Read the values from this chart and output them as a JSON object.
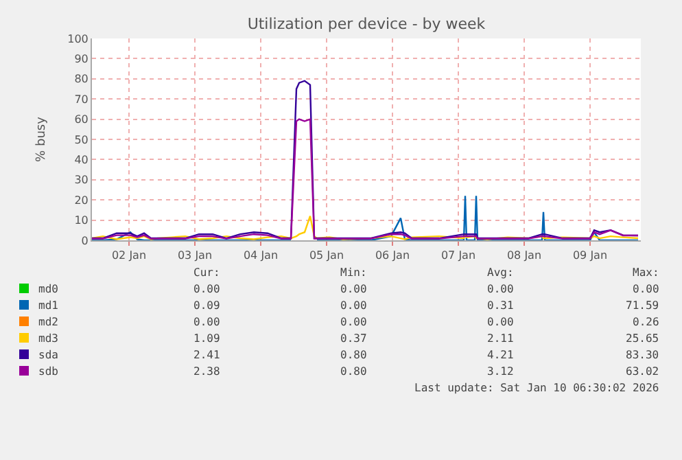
{
  "chart_data": {
    "type": "line",
    "title": "Utilization per device - by week",
    "ylabel": "% busy",
    "x": [
      "2026-01-01T22:30",
      "2026-01-02T02:30",
      "2026-01-02T07:30",
      "2026-01-02T12:30",
      "2026-01-02T15:00",
      "2026-01-02T17:30",
      "2026-01-02T20:00",
      "2026-01-02T22:30",
      "2026-01-03T03:30",
      "2026-01-03T08:30",
      "2026-01-03T13:30",
      "2026-01-03T18:30",
      "2026-01-03T23:30",
      "2026-01-04T04:30",
      "2026-01-04T09:30",
      "2026-01-04T14:30",
      "2026-01-04T19:30",
      "2026-01-04T23:00",
      "2026-01-05T01:00",
      "2026-01-05T02:00",
      "2026-01-05T04:00",
      "2026-01-05T06:00",
      "2026-01-05T07:30",
      "2026-01-05T08:30",
      "2026-01-05T13:00",
      "2026-01-05T18:00",
      "2026-01-06T04:00",
      "2026-01-06T11:30",
      "2026-01-06T15:00",
      "2026-01-06T16:30",
      "2026-01-06T19:00",
      "2026-01-07T05:00",
      "2026-01-07T14:00",
      "2026-01-07T14:30",
      "2026-01-07T15:00",
      "2026-01-07T18:00",
      "2026-01-07T18:30",
      "2026-01-07T19:00",
      "2026-01-07T22:30",
      "2026-01-08T06:00",
      "2026-01-08T13:30",
      "2026-01-08T18:30",
      "2026-01-08T19:00",
      "2026-01-08T19:30",
      "2026-01-09T02:00",
      "2026-01-09T12:00",
      "2026-01-09T13:30",
      "2026-01-09T15:30",
      "2026-01-09T19:30",
      "2026-01-10T00:00",
      "2026-01-10T05:30"
    ],
    "series": [
      {
        "name": "md0",
        "color": "#00cc00",
        "values": [
          null,
          null,
          null,
          null,
          null,
          null,
          null,
          null,
          null,
          null,
          null,
          null,
          null,
          null,
          null,
          null,
          null,
          null,
          null,
          null,
          null,
          null,
          null,
          null,
          null,
          null,
          null,
          null,
          null,
          null,
          null,
          null,
          null,
          null,
          null,
          null,
          null,
          null,
          null,
          null,
          null,
          null,
          null,
          null,
          null,
          null,
          null,
          null,
          null,
          null,
          null
        ]
      },
      {
        "name": "md1",
        "color": "#0066b3",
        "values": [
          0,
          0,
          0.5,
          4,
          0.5,
          0,
          0,
          0,
          0,
          0,
          0,
          0,
          0,
          0,
          0,
          0,
          0,
          0,
          null,
          null,
          null,
          null,
          null,
          0,
          0,
          0,
          0,
          2,
          11,
          0.5,
          0,
          0,
          0,
          22,
          0,
          0,
          22,
          0,
          0,
          0,
          0,
          0,
          14,
          0,
          0,
          0,
          4,
          0,
          0,
          0,
          0
        ]
      },
      {
        "name": "md2",
        "color": "#ff8000",
        "values": [
          null,
          null,
          null,
          null,
          null,
          null,
          null,
          null,
          null,
          null,
          null,
          null,
          null,
          null,
          null,
          null,
          null,
          null,
          null,
          null,
          null,
          null,
          null,
          null,
          null,
          null,
          null,
          null,
          null,
          null,
          null,
          null,
          null,
          null,
          null,
          null,
          null,
          null,
          null,
          null,
          null,
          null,
          null,
          null,
          null,
          null,
          null,
          null,
          null,
          null,
          null
        ]
      },
      {
        "name": "md3",
        "color": "#ffcc00",
        "values": [
          1,
          2,
          0.5,
          1.5,
          1,
          2,
          0.5,
          1,
          1.5,
          2,
          0.5,
          1,
          2,
          1,
          0.5,
          1.5,
          2,
          1,
          2,
          3,
          4,
          12,
          2,
          1,
          1.5,
          0.5,
          1,
          2,
          1,
          0.5,
          1.5,
          2,
          1,
          3,
          1.5,
          2,
          1,
          1,
          0.5,
          1.5,
          1,
          2,
          1,
          1,
          1.5,
          1,
          2,
          1,
          2,
          1.5,
          1
        ]
      },
      {
        "name": "sda",
        "color": "#330099",
        "values": [
          1,
          1,
          3.5,
          3.5,
          2,
          3.5,
          1,
          1,
          1,
          1,
          3,
          3,
          1,
          3,
          4,
          3.5,
          1,
          1,
          75,
          78,
          79,
          77,
          1,
          1,
          1,
          1,
          1,
          3.5,
          4,
          3.5,
          1,
          1,
          3,
          3,
          3,
          3,
          3,
          1,
          1,
          1,
          1,
          3,
          3,
          3,
          1,
          1,
          5,
          4,
          5,
          2.5,
          2.4
        ]
      },
      {
        "name": "sdb",
        "color": "#990099",
        "values": [
          0.8,
          0.8,
          2.5,
          2.5,
          1.5,
          2.5,
          0.8,
          0.8,
          0.8,
          0.8,
          2,
          2,
          0.8,
          2,
          3,
          2.5,
          0.8,
          0.8,
          59,
          60,
          59,
          60,
          0.8,
          0.8,
          0.8,
          0.8,
          0.8,
          3,
          3,
          2.5,
          0.8,
          0.8,
          2,
          2,
          2,
          2,
          2,
          0.8,
          0.8,
          0.8,
          0.8,
          2,
          2,
          2,
          0.8,
          0.8,
          4,
          3,
          5,
          2.4,
          2.4
        ]
      }
    ],
    "xlim": [
      "2026-01-01T22:30",
      "2026-01-10T06:30"
    ],
    "xticks": [
      {
        "value": "2026-01-02T12:00",
        "label": "02 Jan"
      },
      {
        "value": "2026-01-03T12:00",
        "label": "03 Jan"
      },
      {
        "value": "2026-01-04T12:00",
        "label": "04 Jan"
      },
      {
        "value": "2026-01-05T12:00",
        "label": "05 Jan"
      },
      {
        "value": "2026-01-06T12:00",
        "label": "06 Jan"
      },
      {
        "value": "2026-01-07T12:00",
        "label": "07 Jan"
      },
      {
        "value": "2026-01-08T12:00",
        "label": "08 Jan"
      },
      {
        "value": "2026-01-09T12:00",
        "label": "09 Jan"
      }
    ],
    "ylim": [
      0,
      100
    ],
    "yticks": [
      0,
      10,
      20,
      30,
      40,
      50,
      60,
      70,
      80,
      90,
      100
    ],
    "grid": true,
    "legend": "bottom",
    "line_style": "solid",
    "marker": "none",
    "annotations": [
      "Cur:",
      "Min:",
      "Avg:",
      "Max:",
      "0.00",
      "0.00",
      "0.00",
      "0.00",
      "0.09",
      "0.00",
      "0.31",
      "71.59",
      "0.00",
      "0.00",
      "0.00",
      "0.26",
      "1.09",
      "0.37",
      "2.11",
      "25.65",
      "2.41",
      "0.80",
      "4.21",
      "83.30",
      "2.38",
      "0.80",
      "3.12",
      "63.02",
      "Last update: Sat Jan 10 06:30:02 2026"
    ]
  }
}
